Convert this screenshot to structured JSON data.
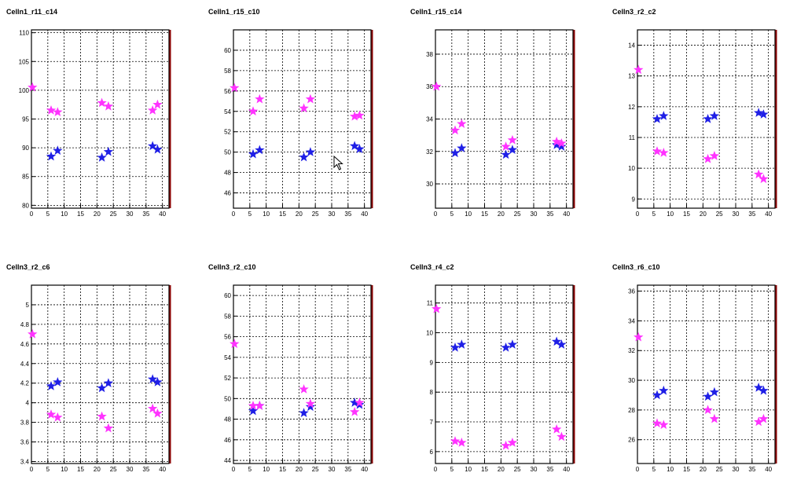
{
  "colors": {
    "blue": "#1f1fe6",
    "magenta": "#ff33ff",
    "frame": "#000000",
    "right_edge": "#8b0000"
  },
  "chart_data": [
    {
      "type": "scatter",
      "title": "Celln1_r11_c14",
      "xlim": [
        0,
        42
      ],
      "ylim": [
        79.5,
        110.5
      ],
      "xticks": [
        0,
        5,
        10,
        15,
        20,
        25,
        30,
        35,
        40
      ],
      "yticks": [
        80,
        85,
        90,
        95,
        100,
        105,
        110
      ],
      "grid": true,
      "series": [
        {
          "color": "blue",
          "x": [
            6,
            8,
            21.5,
            23.5,
            37,
            38.5
          ],
          "y": [
            88.5,
            89.5,
            88.3,
            89.3,
            90.3,
            89.7
          ]
        },
        {
          "color": "magenta",
          "x": [
            0.3,
            6,
            8,
            21.5,
            23.5,
            37,
            38.5
          ],
          "y": [
            100.5,
            96.5,
            96.2,
            97.8,
            97.2,
            96.5,
            97.5
          ]
        }
      ]
    },
    {
      "type": "scatter",
      "title": "Celln1_r15_c10",
      "xlim": [
        0,
        42
      ],
      "ylim": [
        44.5,
        62
      ],
      "xticks": [
        0,
        5,
        10,
        15,
        20,
        25,
        30,
        35,
        40
      ],
      "yticks": [
        46,
        48,
        50,
        52,
        54,
        56,
        58,
        60
      ],
      "grid": true,
      "series": [
        {
          "color": "blue",
          "x": [
            6,
            8,
            21.5,
            23.5,
            37,
            38.5
          ],
          "y": [
            49.8,
            50.2,
            49.5,
            50.0,
            50.6,
            50.3
          ]
        },
        {
          "color": "magenta",
          "x": [
            0.3,
            6,
            8,
            21.5,
            23.5,
            37,
            38.5
          ],
          "y": [
            56.3,
            54.0,
            55.2,
            54.3,
            55.2,
            53.5,
            53.6
          ]
        }
      ]
    },
    {
      "type": "scatter",
      "title": "Celln1_r15_c14",
      "xlim": [
        0,
        42
      ],
      "ylim": [
        28.5,
        39.5
      ],
      "xticks": [
        0,
        5,
        10,
        15,
        20,
        25,
        30,
        35,
        40
      ],
      "yticks": [
        30,
        32,
        34,
        36,
        38
      ],
      "grid": true,
      "series": [
        {
          "color": "blue",
          "x": [
            6,
            8,
            21.5,
            23.5,
            37,
            38.5
          ],
          "y": [
            31.9,
            32.2,
            31.8,
            32.1,
            32.4,
            32.3
          ]
        },
        {
          "color": "magenta",
          "x": [
            0.3,
            6,
            8,
            21.5,
            23.5,
            37,
            38.5
          ],
          "y": [
            36.0,
            33.3,
            33.7,
            32.3,
            32.7,
            32.6,
            32.5
          ]
        }
      ]
    },
    {
      "type": "scatter",
      "title": "Celln3_r2_c2",
      "xlim": [
        0,
        42
      ],
      "ylim": [
        8.7,
        14.5
      ],
      "xticks": [
        0,
        5,
        10,
        15,
        20,
        25,
        30,
        35,
        40
      ],
      "yticks": [
        9,
        10,
        11,
        12,
        13,
        14
      ],
      "grid": true,
      "series": [
        {
          "color": "blue",
          "x": [
            6,
            8,
            21.5,
            23.5,
            37,
            38.5
          ],
          "y": [
            11.6,
            11.7,
            11.6,
            11.7,
            11.8,
            11.75
          ]
        },
        {
          "color": "magenta",
          "x": [
            0.3,
            6,
            8,
            21.5,
            23.5,
            37,
            38.5
          ],
          "y": [
            13.2,
            10.55,
            10.5,
            10.3,
            10.4,
            9.8,
            9.65
          ]
        }
      ]
    },
    {
      "type": "scatter",
      "title": "Celln3_r2_c6",
      "xlim": [
        0,
        42
      ],
      "ylim": [
        3.38,
        5.2
      ],
      "xticks": [
        0,
        5,
        10,
        15,
        20,
        25,
        30,
        35,
        40
      ],
      "yticks": [
        3.4,
        3.6,
        3.8,
        4,
        4.2,
        4.4,
        4.6,
        4.8,
        5
      ],
      "ytick_labels": [
        "3.4",
        "3.6",
        "3.8",
        "4",
        "4.2",
        "4.4",
        "4.6",
        "4.8",
        "5"
      ],
      "grid": true,
      "series": [
        {
          "color": "blue",
          "x": [
            6,
            8,
            21.5,
            23.5,
            37,
            38.5
          ],
          "y": [
            4.17,
            4.21,
            4.15,
            4.2,
            4.24,
            4.21
          ]
        },
        {
          "color": "magenta",
          "x": [
            0.3,
            6,
            8,
            21.5,
            23.5,
            37,
            38.5
          ],
          "y": [
            4.7,
            3.88,
            3.85,
            3.86,
            3.74,
            3.94,
            3.89
          ]
        }
      ]
    },
    {
      "type": "scatter",
      "title": "Celln3_r2_c10",
      "xlim": [
        0,
        42
      ],
      "ylim": [
        43.7,
        61
      ],
      "xticks": [
        0,
        5,
        10,
        15,
        20,
        25,
        30,
        35,
        40
      ],
      "yticks": [
        44,
        46,
        48,
        50,
        52,
        54,
        56,
        58,
        60
      ],
      "grid": true,
      "series": [
        {
          "color": "blue",
          "x": [
            6,
            8,
            21.5,
            23.5,
            37,
            38.5
          ],
          "y": [
            48.8,
            49.3,
            48.6,
            49.2,
            49.6,
            49.4
          ]
        },
        {
          "color": "magenta",
          "x": [
            0.3,
            6,
            8,
            21.5,
            23.5,
            37,
            38.5
          ],
          "y": [
            55.3,
            49.3,
            49.3,
            50.9,
            49.5,
            48.7,
            49.6
          ]
        }
      ]
    },
    {
      "type": "scatter",
      "title": "Celln3_r4_c2",
      "xlim": [
        0,
        42
      ],
      "ylim": [
        5.6,
        11.6
      ],
      "xticks": [
        0,
        5,
        10,
        15,
        20,
        25,
        30,
        35,
        40
      ],
      "yticks": [
        6,
        7,
        8,
        9,
        10,
        11
      ],
      "grid": true,
      "series": [
        {
          "color": "blue",
          "x": [
            6,
            8,
            21.5,
            23.5,
            37,
            38.5
          ],
          "y": [
            9.5,
            9.6,
            9.5,
            9.6,
            9.7,
            9.6
          ]
        },
        {
          "color": "magenta",
          "x": [
            0.3,
            6,
            8,
            21.5,
            23.5,
            37,
            38.5
          ],
          "y": [
            10.8,
            6.35,
            6.3,
            6.2,
            6.3,
            6.75,
            6.5
          ]
        }
      ]
    },
    {
      "type": "scatter",
      "title": "Celln3_r6_c10",
      "xlim": [
        0,
        42
      ],
      "ylim": [
        24.4,
        36.4
      ],
      "xticks": [
        0,
        5,
        10,
        15,
        20,
        25,
        30,
        35,
        40
      ],
      "yticks": [
        26,
        28,
        30,
        32,
        34,
        36
      ],
      "grid": true,
      "series": [
        {
          "color": "blue",
          "x": [
            6,
            8,
            21.5,
            23.5,
            37,
            38.5
          ],
          "y": [
            29.0,
            29.3,
            28.9,
            29.2,
            29.5,
            29.3
          ]
        },
        {
          "color": "magenta",
          "x": [
            0.3,
            6,
            8,
            21.5,
            23.5,
            37,
            38.5
          ],
          "y": [
            32.9,
            27.1,
            27.0,
            28.0,
            27.4,
            27.2,
            27.4
          ]
        }
      ]
    }
  ]
}
